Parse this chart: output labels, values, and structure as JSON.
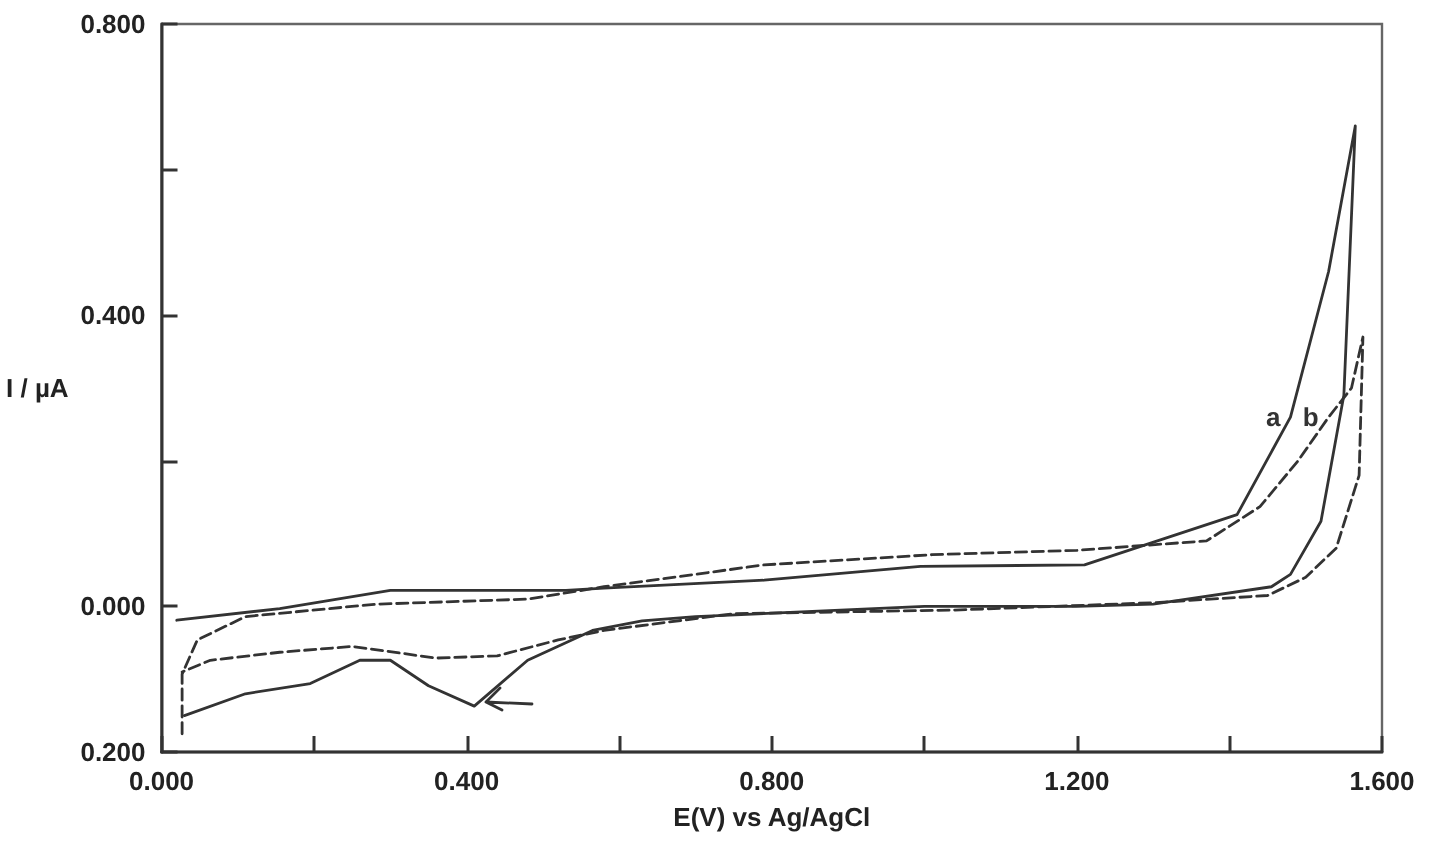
{
  "chart_data": {
    "type": "line",
    "xlabel": "E(V) vs Ag/AgCl",
    "ylabel": "I / µA",
    "xlim": [
      0,
      1.6
    ],
    "xticks": [
      {
        "value": 0,
        "label": "0.000"
      },
      {
        "value": 0.2,
        "label": null
      },
      {
        "value": 0.4,
        "label": "0.400"
      },
      {
        "value": 0.6,
        "label": null
      },
      {
        "value": 0.8,
        "label": "0.800"
      },
      {
        "value": 1.0,
        "label": null
      },
      {
        "value": 1.2,
        "label": "1.200"
      },
      {
        "value": 1.4,
        "label": null
      },
      {
        "value": 1.6,
        "label": "1.600"
      }
    ],
    "ylim": [
      -0.2,
      0.8
    ],
    "yticks": [
      {
        "value": -0.2,
        "label": "0.200"
      },
      {
        "value": 0,
        "label": "0.000"
      },
      {
        "value": 0.2,
        "label": null
      },
      {
        "value": 0.4,
        "label": "0.400"
      },
      {
        "value": 0.6,
        "label": null
      },
      {
        "value": 0.8,
        "label": "0.800"
      }
    ],
    "grid": false,
    "legend": false,
    "marker": "none",
    "series": [
      {
        "name": "a",
        "color": "#333333",
        "line_style": "solid",
        "x": [
          0.02,
          0.155,
          0.3,
          0.53,
          0.58,
          0.79,
          0.995,
          1.21,
          1.41,
          1.48,
          1.53,
          1.565,
          1.55,
          1.52,
          1.48,
          1.455,
          1.3,
          1.2,
          1.0,
          0.7,
          0.63,
          0.565,
          0.48,
          0.41,
          0.35,
          0.3,
          0.26,
          0.195,
          0.11,
          0.03
        ],
        "values": [
          -0.019,
          -0.003,
          0.022,
          0.022,
          0.025,
          0.036,
          0.055,
          0.057,
          0.126,
          0.26,
          0.46,
          0.66,
          0.29,
          0.117,
          0.044,
          0.027,
          0.003,
          0.0,
          0.0,
          -0.014,
          -0.02,
          -0.033,
          -0.074,
          -0.137,
          -0.109,
          -0.074,
          -0.074,
          -0.106,
          -0.12,
          -0.15
        ]
      },
      {
        "name": "b",
        "color": "#333333",
        "line_style": "dashed",
        "x": [
          0.027,
          0.027,
          0.047,
          0.11,
          0.28,
          0.48,
          0.58,
          0.79,
          1.01,
          1.2,
          1.37,
          1.44,
          1.49,
          1.53,
          1.56,
          1.575,
          1.57,
          1.54,
          1.5,
          1.45,
          1.3,
          1.04,
          0.75,
          0.58,
          0.52,
          0.44,
          0.36,
          0.25,
          0.155,
          0.064,
          0.027
        ],
        "values": [
          -0.175,
          -0.093,
          -0.046,
          -0.014,
          0.003,
          0.01,
          0.027,
          0.057,
          0.071,
          0.077,
          0.09,
          0.137,
          0.2,
          0.26,
          0.3,
          0.37,
          0.18,
          0.08,
          0.04,
          0.015,
          0.005,
          -0.005,
          -0.01,
          -0.033,
          -0.046,
          -0.068,
          -0.071,
          -0.055,
          -0.063,
          -0.074,
          -0.09
        ]
      }
    ]
  }
}
